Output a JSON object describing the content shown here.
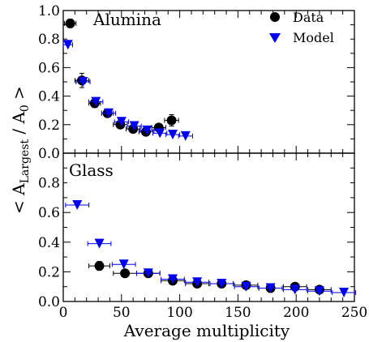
{
  "chart_data": {
    "type": "scatter",
    "xlabel": "Average multiplicity",
    "ylabel_main": "< A",
    "ylabel_sub": "Largest",
    "ylabel_tail": " / A",
    "ylabel_sub2": "0",
    "ylabel_close": " >",
    "xlim": [
      0,
      250
    ],
    "x_ticks": [
      "0",
      "50",
      "100",
      "150",
      "200",
      "250"
    ],
    "legend": {
      "position": "top-right",
      "entries": [
        {
          "label": "Data",
          "color": "#000000",
          "marker": "circle"
        },
        {
          "label": "Model",
          "color": "#0000ee",
          "marker": "triangle-down"
        }
      ]
    },
    "panels": [
      {
        "label": "Alumina",
        "ylim": [
          0,
          1.0
        ],
        "y_ticks": [
          "0.0",
          "0.2",
          "0.4",
          "0.6",
          "0.8",
          "1.0"
        ],
        "series": [
          {
            "name": "Data",
            "points": [
              {
                "x": 6,
                "y": 0.91,
                "xerr": 5,
                "yerr": 0.03
              },
              {
                "x": 16,
                "y": 0.51,
                "xerr": 6,
                "yerr": 0.05
              },
              {
                "x": 27,
                "y": 0.35,
                "xerr": 5,
                "yerr": 0.03
              },
              {
                "x": 38,
                "y": 0.28,
                "xerr": 5,
                "yerr": 0.02
              },
              {
                "x": 49,
                "y": 0.2,
                "xerr": 6,
                "yerr": 0.02
              },
              {
                "x": 60,
                "y": 0.17,
                "xerr": 6,
                "yerr": 0.02
              },
              {
                "x": 71,
                "y": 0.15,
                "xerr": 6,
                "yerr": 0.02
              },
              {
                "x": 82,
                "y": 0.18,
                "xerr": 6,
                "yerr": 0.02
              },
              {
                "x": 93,
                "y": 0.23,
                "xerr": 6,
                "yerr": 0.04
              }
            ]
          },
          {
            "name": "Model",
            "points": [
              {
                "x": 4,
                "y": 0.76,
                "xerr": 4,
                "yerr": 0
              },
              {
                "x": 17,
                "y": 0.5,
                "xerr": 6,
                "yerr": 0
              },
              {
                "x": 28,
                "y": 0.36,
                "xerr": 6,
                "yerr": 0
              },
              {
                "x": 39,
                "y": 0.28,
                "xerr": 6,
                "yerr": 0
              },
              {
                "x": 50,
                "y": 0.22,
                "xerr": 6,
                "yerr": 0
              },
              {
                "x": 61,
                "y": 0.19,
                "xerr": 6,
                "yerr": 0
              },
              {
                "x": 72,
                "y": 0.16,
                "xerr": 6,
                "yerr": 0
              },
              {
                "x": 83,
                "y": 0.14,
                "xerr": 6,
                "yerr": 0
              },
              {
                "x": 94,
                "y": 0.13,
                "xerr": 6,
                "yerr": 0
              },
              {
                "x": 105,
                "y": 0.12,
                "xerr": 6,
                "yerr": 0
              }
            ]
          }
        ]
      },
      {
        "label": "Glass",
        "ylim": [
          0,
          1.0
        ],
        "y_ticks": [
          "0.0",
          "0.2",
          "0.4",
          "0.6",
          "0.8"
        ],
        "series": [
          {
            "name": "Data",
            "points": [
              {
                "x": 31,
                "y": 0.24,
                "xerr": 9,
                "yerr": 0.03
              },
              {
                "x": 53,
                "y": 0.19,
                "xerr": 10,
                "yerr": 0.02
              },
              {
                "x": 73,
                "y": 0.19,
                "xerr": 10,
                "yerr": 0.02
              },
              {
                "x": 94,
                "y": 0.14,
                "xerr": 10,
                "yerr": 0.02
              },
              {
                "x": 115,
                "y": 0.12,
                "xerr": 10,
                "yerr": 0.02
              },
              {
                "x": 136,
                "y": 0.12,
                "xerr": 10,
                "yerr": 0.01
              },
              {
                "x": 157,
                "y": 0.11,
                "xerr": 10,
                "yerr": 0.01
              },
              {
                "x": 178,
                "y": 0.09,
                "xerr": 10,
                "yerr": 0.01
              },
              {
                "x": 199,
                "y": 0.1,
                "xerr": 10,
                "yerr": 0.01
              },
              {
                "x": 220,
                "y": 0.08,
                "xerr": 10,
                "yerr": 0.01
              }
            ]
          },
          {
            "name": "Model",
            "points": [
              {
                "x": 12,
                "y": 0.65,
                "xerr": 10,
                "yerr": 0
              },
              {
                "x": 31,
                "y": 0.39,
                "xerr": 10,
                "yerr": 0
              },
              {
                "x": 52,
                "y": 0.25,
                "xerr": 10,
                "yerr": 0
              },
              {
                "x": 73,
                "y": 0.19,
                "xerr": 10,
                "yerr": 0
              },
              {
                "x": 94,
                "y": 0.15,
                "xerr": 10,
                "yerr": 0
              },
              {
                "x": 115,
                "y": 0.13,
                "xerr": 10,
                "yerr": 0
              },
              {
                "x": 136,
                "y": 0.12,
                "xerr": 10,
                "yerr": 0
              },
              {
                "x": 157,
                "y": 0.1,
                "xerr": 10,
                "yerr": 0
              },
              {
                "x": 178,
                "y": 0.09,
                "xerr": 10,
                "yerr": 0
              },
              {
                "x": 199,
                "y": 0.08,
                "xerr": 10,
                "yerr": 0
              },
              {
                "x": 220,
                "y": 0.07,
                "xerr": 10,
                "yerr": 0
              },
              {
                "x": 241,
                "y": 0.06,
                "xerr": 10,
                "yerr": 0
              }
            ]
          }
        ]
      }
    ]
  }
}
